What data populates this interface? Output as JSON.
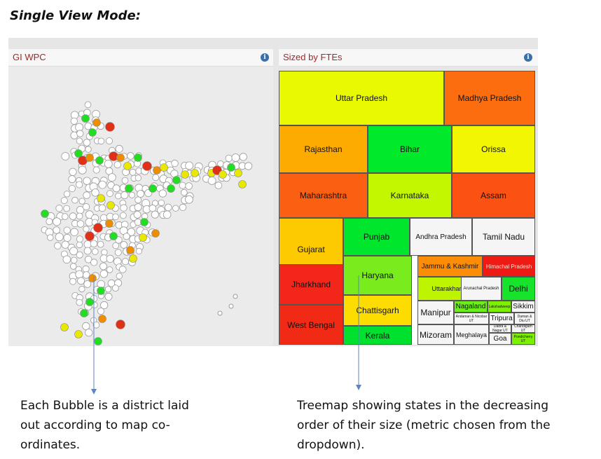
{
  "heading": "Single View Mode:",
  "map_panel": {
    "title": "GI WPC",
    "info_icon": "info-icon",
    "info_glyph": "i"
  },
  "treemap_panel": {
    "title": "Sized by FTEs",
    "info_icon": "info-icon",
    "info_glyph": "i",
    "tiles": [
      {
        "label": "Uttar Pradesh",
        "color": "#e9f900"
      },
      {
        "label": "Madhya Pradesh",
        "color": "#fb6d0f"
      },
      {
        "label": "Rajasthan",
        "color": "#fdab00"
      },
      {
        "label": "Bihar",
        "color": "#00e92b"
      },
      {
        "label": "Orissa",
        "color": "#f2f600"
      },
      {
        "label": "Maharashtra",
        "color": "#fb5f12"
      },
      {
        "label": "Karnataka",
        "color": "#c2f700"
      },
      {
        "label": "Assam",
        "color": "#fb5112"
      },
      {
        "label": "Gujarat",
        "color": "#fdc900"
      },
      {
        "label": "Punjab",
        "color": "#00e62d"
      },
      {
        "label": "Andhra Pradesh",
        "color": "#f5f5f5"
      },
      {
        "label": "Tamil Nadu",
        "color": "#f5f5f5"
      },
      {
        "label": "Haryana",
        "color": "#79ec1e"
      },
      {
        "label": "Jammu & Kashmir",
        "color": "#fd8c07"
      },
      {
        "label": "Himachal Pradesh",
        "color": "#f01a14"
      },
      {
        "label": "Jharkhand",
        "color": "#f3261a"
      },
      {
        "label": "Uttarakhand",
        "color": "#bdf500"
      },
      {
        "label": "Arunachal Pradesh",
        "color": "#f5f5f5"
      },
      {
        "label": "Delhi",
        "color": "#17e32d"
      },
      {
        "label": "Chattisgarh",
        "color": "#fddd00"
      },
      {
        "label": "Manipur",
        "color": "#f5f5f5"
      },
      {
        "label": "Nagaland",
        "color": "#6ded1c"
      },
      {
        "label": "Lakshadweep",
        "color": "#7cf000"
      },
      {
        "label": "Sikkim",
        "color": "#f5f5f5"
      },
      {
        "label": "West Bengal",
        "color": "#f02a14"
      },
      {
        "label": "Andaman & Nicobar UT",
        "color": "#f5f5f5"
      },
      {
        "label": "Tripura",
        "color": "#f5f5f5"
      },
      {
        "label": "Daman & Diu UT",
        "color": "#f5f5f5"
      },
      {
        "label": "Kerala",
        "color": "#00e02f"
      },
      {
        "label": "Mizoram",
        "color": "#f5f5f5"
      },
      {
        "label": "Meghalaya",
        "color": "#f5f5f5"
      },
      {
        "label": "Dadra & Nagar UT",
        "color": "#f5f5f5"
      },
      {
        "label": "Chandigarh UT",
        "color": "#f5f5f5"
      },
      {
        "label": "Goa",
        "color": "#f5f5f5"
      },
      {
        "label": "Pondicherry UT",
        "color": "#7cf000"
      }
    ]
  },
  "annotations": {
    "left": "Each Bubble is a district laid out according to map co-ordinates.",
    "left_lines": [
      "Each Bubble is a district laid",
      "out according to map co-",
      "ordinates."
    ],
    "right": "Treemap showing states in the decreasing order of their size (metric chosen from the dropdown).",
    "right_lines": [
      "Treemap showing states in the decreasing",
      "order of their size (metric chosen from the",
      "dropdown)."
    ]
  },
  "colors": {
    "title_red": "#a0282a",
    "info_blue": "#3a6fa8",
    "bubble_neutral": "#ffffff",
    "bubble_green": "#22dd22",
    "bubble_yellow": "#e8e800",
    "bubble_orange": "#f08c00",
    "bubble_red": "#e03018",
    "pointer_blue": "#5b86c5"
  }
}
